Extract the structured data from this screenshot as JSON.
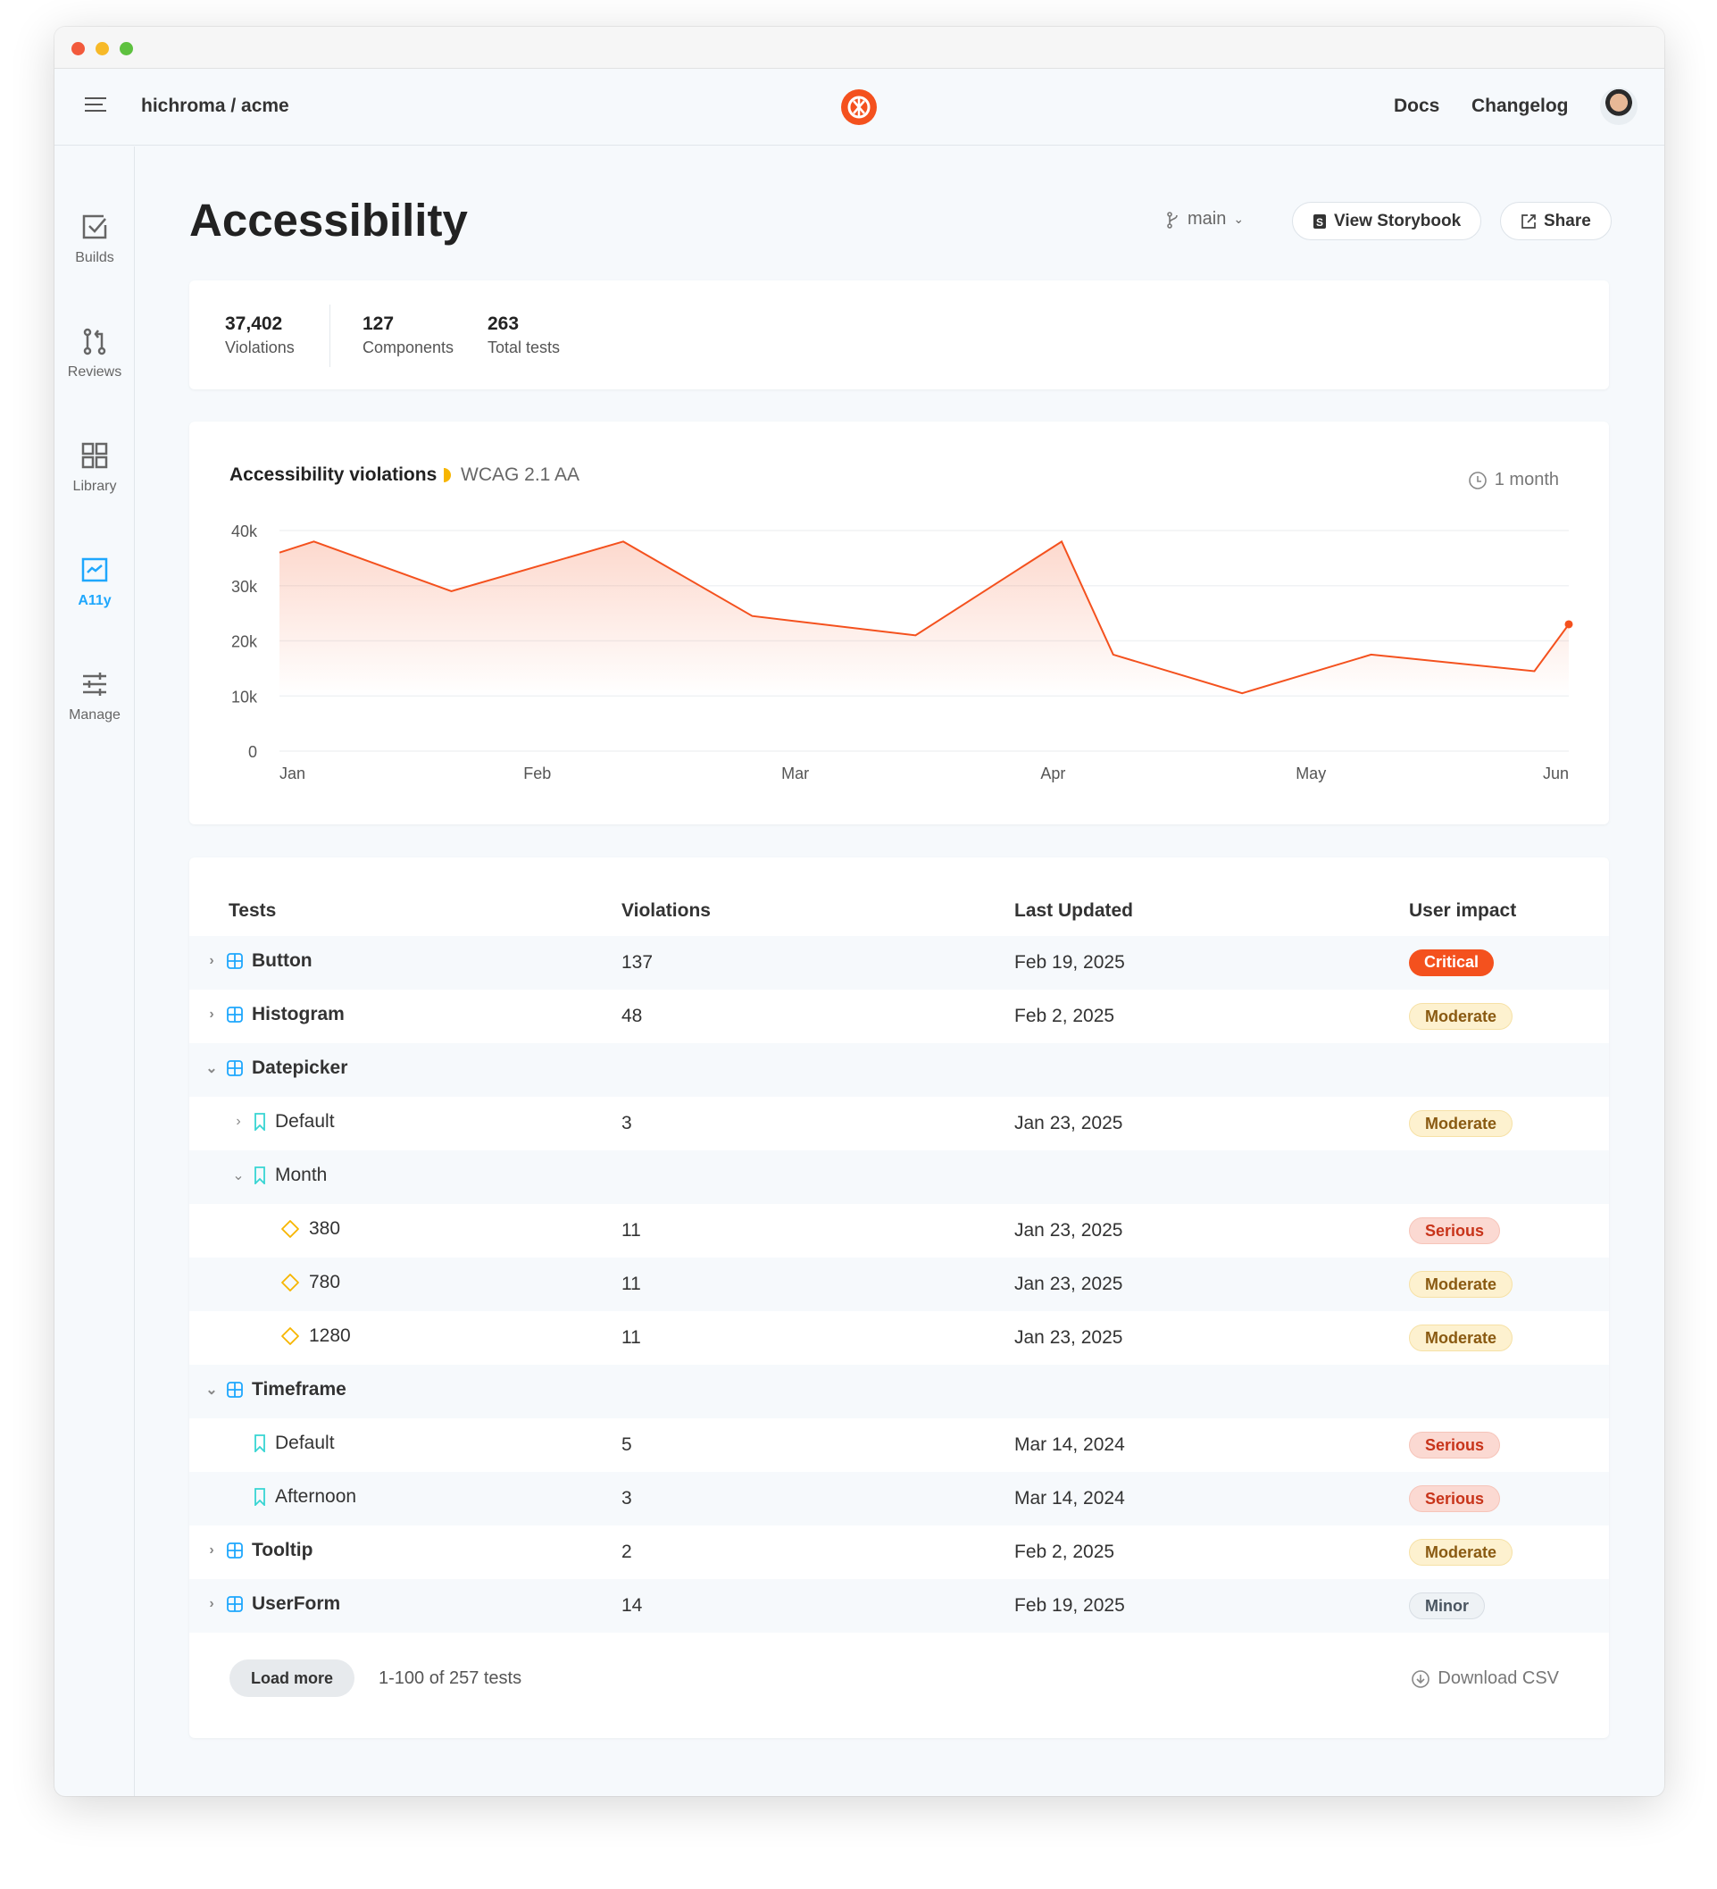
{
  "window": {
    "traffic_lights": [
      "#f25a3c",
      "#f7b928",
      "#5ec13f"
    ]
  },
  "header": {
    "breadcrumb": "hichroma / acme",
    "links": [
      "Docs",
      "Changelog"
    ],
    "brand_color": "#f4511e"
  },
  "sidebar": {
    "items": [
      {
        "label": "Builds",
        "icon": "checkbox-icon",
        "active": false
      },
      {
        "label": "Reviews",
        "icon": "pull-request-icon",
        "active": false
      },
      {
        "label": "Library",
        "icon": "grid-icon",
        "active": false
      },
      {
        "label": "A11y",
        "icon": "line-chart-icon",
        "active": true
      },
      {
        "label": "Manage",
        "icon": "sliders-icon",
        "active": false
      }
    ],
    "active_color": "#1ea7fd"
  },
  "page": {
    "title": "Accessibility",
    "branch": "main",
    "view_storybook": "View Storybook",
    "share": "Share"
  },
  "stats": [
    {
      "value": "37,402",
      "label": "Violations"
    },
    {
      "value": "127",
      "label": "Components"
    },
    {
      "value": "263",
      "label": "Total tests"
    }
  ],
  "chart_data": {
    "type": "area",
    "title": "Accessibility violations",
    "standard": "WCAG 2.1 AA",
    "period": "1 month",
    "x_tick_labels": [
      "Jan",
      "Feb",
      "Mar",
      "Apr",
      "May",
      "Jun"
    ],
    "y_tick_labels": [
      "0",
      "10k",
      "20k",
      "30k",
      "40k"
    ],
    "ylim": [
      0,
      40000
    ],
    "grid": true,
    "color": "#f4511e",
    "x": [
      "Jan 1",
      "Jan 5",
      "Jan 21",
      "Feb 11",
      "Feb 26",
      "Mar 15",
      "Apr 2",
      "Apr 8",
      "Apr 23",
      "May 8",
      "May 27",
      "Jun 1"
    ],
    "values": [
      36000,
      38000,
      29000,
      38000,
      24500,
      21000,
      38000,
      17500,
      10500,
      17500,
      14500,
      23000
    ]
  },
  "table": {
    "headers": [
      "Tests",
      "Violations",
      "Last Updated",
      "User impact"
    ],
    "rows": [
      {
        "name": "Button",
        "level": 0,
        "kind": "component",
        "expander": "collapsed",
        "violations": "137",
        "updated": "Feb 19, 2025",
        "impact": "Critical"
      },
      {
        "name": "Histogram",
        "level": 0,
        "kind": "component",
        "expander": "collapsed",
        "violations": "48",
        "updated": "Feb 2, 2025",
        "impact": "Moderate"
      },
      {
        "name": "Datepicker",
        "level": 0,
        "kind": "component",
        "expander": "expanded",
        "violations": "",
        "updated": "",
        "impact": ""
      },
      {
        "name": "Default",
        "level": 1,
        "kind": "story",
        "expander": "collapsed",
        "violations": "3",
        "updated": "Jan 23, 2025",
        "impact": "Moderate"
      },
      {
        "name": "Month",
        "level": 1,
        "kind": "story",
        "expander": "expanded",
        "violations": "",
        "updated": "",
        "impact": ""
      },
      {
        "name": "380",
        "level": 2,
        "kind": "viewport",
        "expander": "",
        "violations": "11",
        "updated": "Jan 23, 2025",
        "impact": "Serious"
      },
      {
        "name": "780",
        "level": 2,
        "kind": "viewport",
        "expander": "",
        "violations": "11",
        "updated": "Jan 23, 2025",
        "impact": "Moderate"
      },
      {
        "name": "1280",
        "level": 2,
        "kind": "viewport",
        "expander": "",
        "violations": "11",
        "updated": "Jan 23, 2025",
        "impact": "Moderate"
      },
      {
        "name": "Timeframe",
        "level": 0,
        "kind": "component",
        "expander": "expanded",
        "violations": "",
        "updated": "",
        "impact": ""
      },
      {
        "name": "Default",
        "level": 1,
        "kind": "story",
        "expander": "",
        "violations": "5",
        "updated": "Mar 14, 2024",
        "impact": "Serious"
      },
      {
        "name": "Afternoon",
        "level": 1,
        "kind": "story",
        "expander": "",
        "violations": "3",
        "updated": "Mar 14, 2024",
        "impact": "Serious"
      },
      {
        "name": "Tooltip",
        "level": 0,
        "kind": "component",
        "expander": "collapsed",
        "violations": "2",
        "updated": "Feb 2, 2025",
        "impact": "Moderate"
      },
      {
        "name": "UserForm",
        "level": 0,
        "kind": "component",
        "expander": "collapsed",
        "violations": "14",
        "updated": "Feb 19, 2025",
        "impact": "Minor"
      }
    ],
    "load_more": "Load more",
    "count": "1-100 of 257 tests",
    "download": "Download CSV"
  }
}
